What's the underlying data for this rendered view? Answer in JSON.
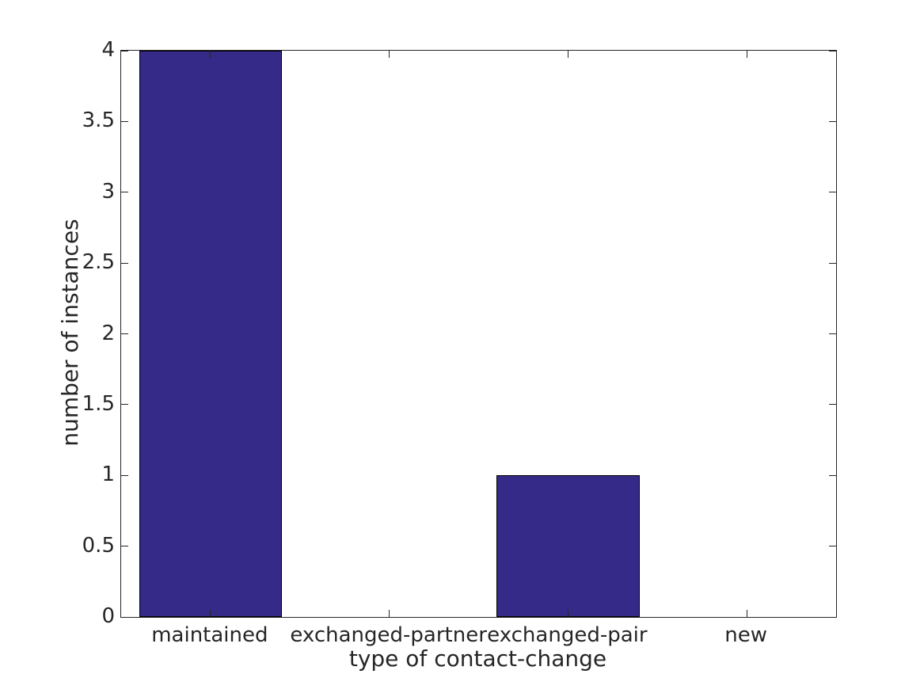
{
  "chart_data": {
    "type": "bar",
    "title": "",
    "xlabel": "type of contact-change",
    "ylabel": "number of instances",
    "categories": [
      "maintained",
      "exchanged-partner",
      "exchanged-pair",
      "new"
    ],
    "values": [
      4,
      0,
      1,
      0
    ],
    "ylim": [
      0,
      4
    ],
    "yticks": [
      0,
      0.5,
      1,
      1.5,
      2,
      2.5,
      3,
      3.5,
      4
    ],
    "ytick_labels": [
      "0",
      "0.5",
      "1",
      "1.5",
      "2",
      "2.5",
      "3",
      "3.5",
      "4"
    ],
    "bar_width_fraction": 0.8,
    "grid": false,
    "legend": null,
    "tick_style": "inward-all-sides",
    "colors": {
      "bar_fill": "#352A87",
      "bar_edge": "#000000",
      "axis": "#262626",
      "text": "#262626",
      "background": "#FFFFFF"
    }
  }
}
